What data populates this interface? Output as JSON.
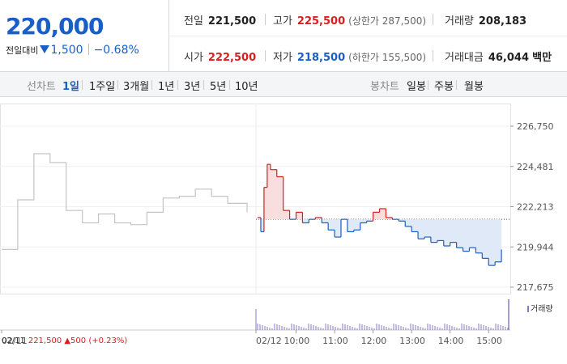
{
  "quote": {
    "price": "220,000",
    "diff_label": "전일대비",
    "diff_value": "1,500",
    "diff_pct": "−0.68%",
    "prev_close_label": "전일",
    "prev_close": "221,500",
    "high_label": "고가",
    "high": "225,500",
    "upper_limit": "(상한가 287,500)",
    "volume_label": "거래량",
    "volume": "208,183",
    "open_label": "시가",
    "open": "222,500",
    "low_label": "저가",
    "low": "218,500",
    "lower_limit": "(하한가 155,500)",
    "amount_label": "거래대금",
    "amount": "46,044",
    "amount_unit": "백만"
  },
  "tabs": {
    "line_head": "선차트",
    "line_items": [
      "1일",
      "1주일",
      "3개월",
      "1년",
      "3년",
      "5년",
      "10년"
    ],
    "selected": "1일",
    "candle_head": "봉차트",
    "candle_items": [
      "일봉",
      "주봉",
      "월봉"
    ]
  },
  "colors": {
    "up": "#d42020",
    "down": "#1a5fc7",
    "prev_day_line": "#c4c4c4",
    "volume": "#8a78c4"
  },
  "chart_data": {
    "type": "line",
    "title": "",
    "y_ticks": [
      "226,750",
      "224,481",
      "222,213",
      "219,944",
      "217,675"
    ],
    "ylim": [
      217675,
      226750
    ],
    "reference_price": 221500,
    "x_labels": [
      "02/11",
      "02/12",
      "10:00",
      "11:00",
      "12:00",
      "13:00",
      "14:00",
      "15:00"
    ],
    "series": [
      {
        "x": [
          "02/11 09:00",
          "02/11 09:25",
          "02/11 09:50",
          "02/11 10:15",
          "02/11 10:40",
          "02/11 11:05",
          "02/11 11:30",
          "02/11 11:55",
          "02/11 12:20",
          "02/11 12:45",
          "02/11 13:10",
          "02/11 13:35",
          "02/11 14:00",
          "02/11 14:25",
          "02/11 14:50",
          "02/11 15:20"
        ],
        "values": [
          219800,
          222600,
          225200,
          224700,
          222000,
          221300,
          221800,
          221300,
          221200,
          221900,
          222700,
          222800,
          223200,
          222800,
          222400,
          221900
        ]
      },
      {
        "x": [
          "09:00",
          "09:05",
          "09:10",
          "09:15",
          "09:20",
          "09:30",
          "09:40",
          "09:50",
          "10:00",
          "10:10",
          "10:20",
          "10:30",
          "10:40",
          "10:50",
          "11:00",
          "11:10",
          "11:20",
          "11:30",
          "11:40",
          "11:50",
          "12:00",
          "12:10",
          "12:20",
          "12:30",
          "12:40",
          "12:50",
          "13:00",
          "13:10",
          "13:20",
          "13:30",
          "13:40",
          "13:50",
          "14:00",
          "14:10",
          "14:20",
          "14:30",
          "14:40",
          "14:50",
          "15:00",
          "15:10",
          "15:20"
        ],
        "values": [
          221600,
          220800,
          223300,
          224600,
          224300,
          223900,
          222000,
          221500,
          221900,
          221300,
          221500,
          221600,
          221300,
          220900,
          220500,
          221500,
          220800,
          220900,
          221300,
          221400,
          221900,
          222100,
          221600,
          221500,
          221400,
          221100,
          220800,
          220400,
          220500,
          220200,
          220300,
          220000,
          220200,
          219900,
          219700,
          219900,
          219600,
          219300,
          218900,
          219100,
          219800
        ]
      }
    ],
    "volume_label": "거래량"
  },
  "footer": {
    "date": "02/11",
    "info": "221,500 ▲500 (+0.23%)"
  }
}
